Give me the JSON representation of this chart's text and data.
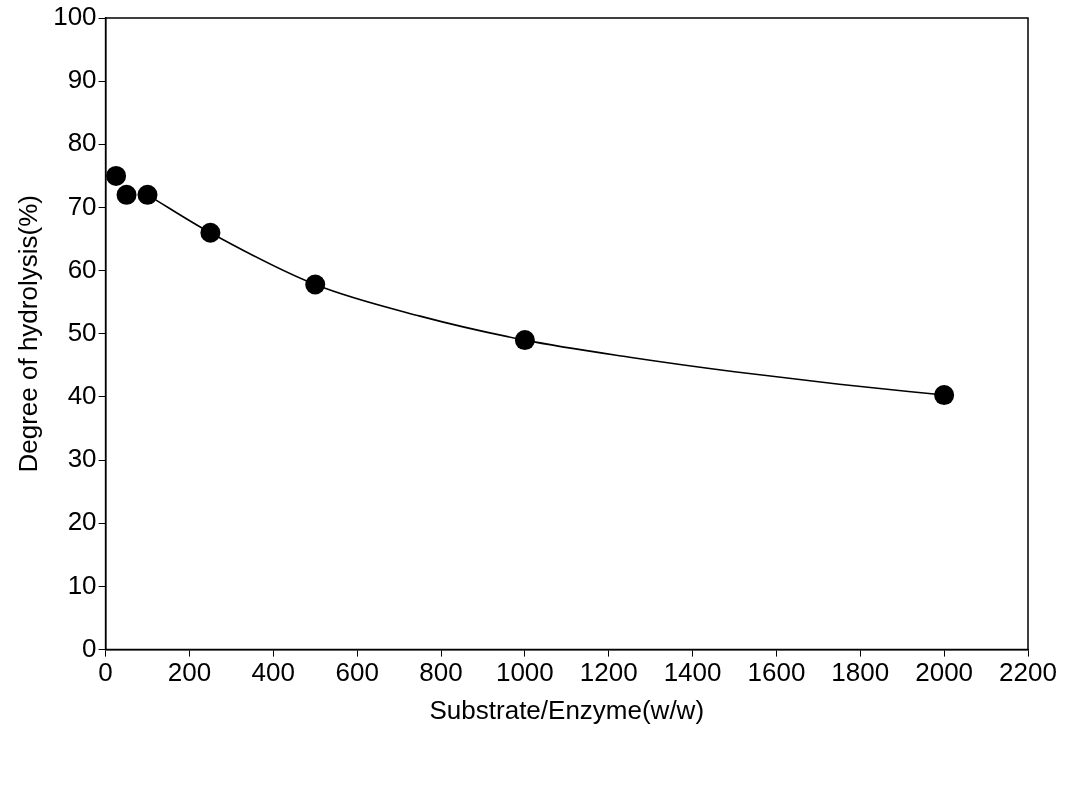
{
  "chart_data": {
    "type": "scatter",
    "xlabel": "Substrate/Enzyme(w/w)",
    "ylabel": "Degree of hydrolysis(%)",
    "xlim": [
      0,
      2200
    ],
    "xticks": [
      0,
      200,
      400,
      600,
      800,
      1000,
      1200,
      1400,
      1600,
      1800,
      2000,
      2200
    ],
    "ylim": [
      0,
      100
    ],
    "yticks": [
      0,
      10,
      20,
      30,
      40,
      50,
      60,
      70,
      80,
      90,
      100
    ],
    "grid": false,
    "marker": "circle",
    "series": [
      {
        "type": "line",
        "color": "#000000",
        "marker": "none",
        "x": [
          100,
          250,
          500,
          750,
          1000,
          1250,
          1500,
          1750,
          2000
        ],
        "values": [
          72,
          66,
          57.8,
          52.8,
          49,
          46.3,
          44,
          42,
          40.3
        ]
      },
      {
        "type": "scatter",
        "color": "#000000",
        "x": [
          25,
          50,
          100,
          250,
          500,
          1000,
          2000
        ],
        "values": [
          75,
          72,
          72,
          66,
          57.8,
          49,
          40.3
        ]
      }
    ]
  }
}
